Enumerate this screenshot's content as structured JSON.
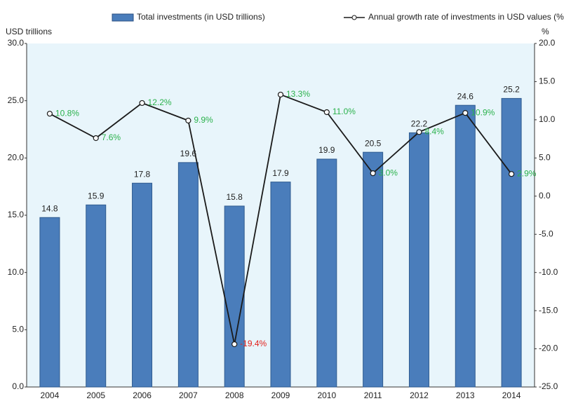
{
  "chart_data": {
    "type": "bar_line",
    "categories": [
      "2004",
      "2005",
      "2006",
      "2007",
      "2008",
      "2009",
      "2010",
      "2011",
      "2012",
      "2013",
      "2014"
    ],
    "y_label": "USD  trillions",
    "y2_label": "%",
    "ylim": [
      0,
      30
    ],
    "yticks": [
      {
        "value": 0,
        "label": "0.0"
      },
      {
        "value": 5,
        "label": "5.0"
      },
      {
        "value": 10,
        "label": "10.0"
      },
      {
        "value": 15,
        "label": "15.0"
      },
      {
        "value": 20,
        "label": "20.0"
      },
      {
        "value": 25,
        "label": "25.0"
      },
      {
        "value": 30,
        "label": "30.0"
      }
    ],
    "y2lim": [
      -25,
      20
    ],
    "y2ticks": [
      {
        "value": -25,
        "label": "-25.0"
      },
      {
        "value": -20,
        "label": "-20.0"
      },
      {
        "value": -15,
        "label": "-15.0"
      },
      {
        "value": -10,
        "label": "-10.0"
      },
      {
        "value": -5,
        "label": "-5.0"
      },
      {
        "value": 0,
        "label": "0.0"
      },
      {
        "value": 5,
        "label": "5.0"
      },
      {
        "value": 10,
        "label": "10.0"
      },
      {
        "value": 15,
        "label": "15.0"
      },
      {
        "value": 20,
        "label": "20.0"
      }
    ],
    "legend": "top",
    "positive_label_color": "#2bb24c",
    "negative_label_color": "#e3201b",
    "series": [
      {
        "name": "Total investments (in USD trillions)",
        "kind": "bar",
        "color": "#4a7dbb",
        "values": [
          14.8,
          15.9,
          17.8,
          19.6,
          15.8,
          17.9,
          19.9,
          20.5,
          22.2,
          24.6,
          25.2
        ]
      },
      {
        "name": "Annual growth rate of investments in USD values (%)",
        "kind": "line",
        "axis": "y2",
        "color": "#1a1a1a",
        "values": [
          10.8,
          7.6,
          12.2,
          9.9,
          -19.4,
          13.3,
          11.0,
          3.0,
          8.4,
          10.9,
          2.9
        ],
        "value_labels": [
          "10.8%",
          "7.6%",
          "12.2%",
          "9.9%",
          "-19.4%",
          "13.3%",
          "11.0%",
          "3.0%",
          "8.4%",
          "10.9%",
          "2.9%"
        ]
      }
    ]
  }
}
